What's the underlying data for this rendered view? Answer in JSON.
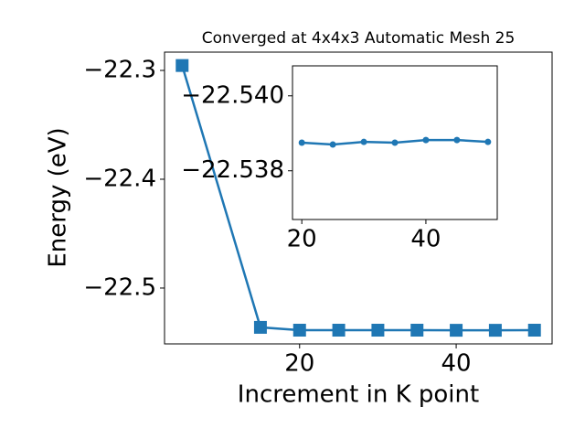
{
  "chart_data": [
    {
      "type": "line",
      "title": "Converged at 4x4x3 Automatic Mesh 25",
      "xlabel": "Increment in K point",
      "ylabel": "Energy (eV)",
      "x": [
        5,
        15,
        20,
        25,
        30,
        35,
        40,
        45,
        50
      ],
      "series": [
        {
          "color": "#1f77b4",
          "marker": "square",
          "values": [
            -22.2955,
            -22.5361,
            -22.5387,
            -22.5387,
            -22.5387,
            -22.5387,
            -22.5388,
            -22.5388,
            -22.5387
          ]
        }
      ],
      "xlim": [
        2.75,
        52.25
      ],
      "xticks": [
        20,
        40
      ],
      "ylim": [
        -22.5513,
        -22.2832
      ],
      "yticks": [
        {
          "value": -22.5,
          "label": "−22.5"
        },
        {
          "value": -22.4,
          "label": "−22.4"
        },
        {
          "value": -22.3,
          "label": "−22.3"
        }
      ]
    },
    {
      "type": "line",
      "x": [
        20,
        25,
        30,
        35,
        40,
        45,
        50
      ],
      "series": [
        {
          "color": "#1f77b4",
          "marker": "circle",
          "values": [
            -22.53875,
            -22.5387,
            -22.53877,
            -22.53875,
            -22.53882,
            -22.53882,
            -22.53877
          ]
        }
      ],
      "xlim": [
        18.5,
        51.5
      ],
      "xticks": [
        20,
        40
      ],
      "ylim": [
        -22.5367,
        -22.5408
      ],
      "yticks": [
        {
          "value": -22.538,
          "label": "−22.538"
        },
        {
          "value": -22.54,
          "label": "−22.540"
        }
      ]
    }
  ]
}
